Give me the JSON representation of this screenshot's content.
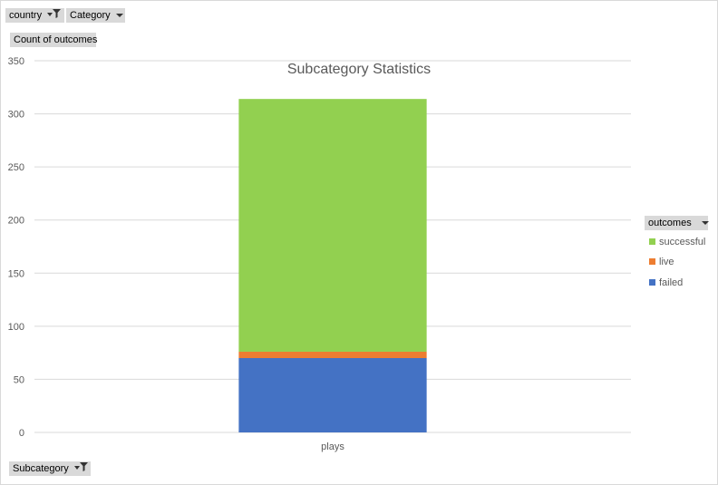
{
  "filters": {
    "country": "country",
    "category": "Category",
    "values_field": "Count of outcomes",
    "axis_field": "Subcategory",
    "legend_field": "outcomes"
  },
  "icons": {
    "filter": "funnel-icon",
    "dropdown": "caret-down-icon"
  },
  "chart_data": {
    "type": "bar",
    "stacked": true,
    "title": "Subcategory Statistics",
    "categories": [
      "plays"
    ],
    "series": [
      {
        "name": "failed",
        "values": [
          70
        ],
        "color": "#4472c4"
      },
      {
        "name": "live",
        "values": [
          6
        ],
        "color": "#ed7d31"
      },
      {
        "name": "successful",
        "values": [
          238
        ],
        "color": "#92d050"
      }
    ],
    "legend_order": [
      "successful",
      "live",
      "failed"
    ],
    "xlabel": "",
    "ylabel": "",
    "ylim": [
      0,
      350
    ],
    "yticks": [
      0,
      50,
      100,
      150,
      200,
      250,
      300,
      350
    ],
    "grid": true,
    "legend_position": "right"
  }
}
